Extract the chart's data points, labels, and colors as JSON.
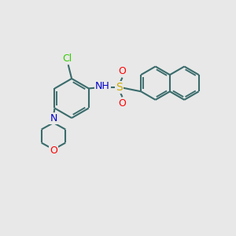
{
  "background_color": "#e8e8e8",
  "bond_color": "#3a6b6b",
  "bond_width": 1.5,
  "colors": {
    "N": "#0000cc",
    "O": "#ff0000",
    "S": "#ccaa00",
    "Cl": "#33cc00"
  },
  "figsize": [
    3.0,
    3.0
  ],
  "dpi": 100
}
